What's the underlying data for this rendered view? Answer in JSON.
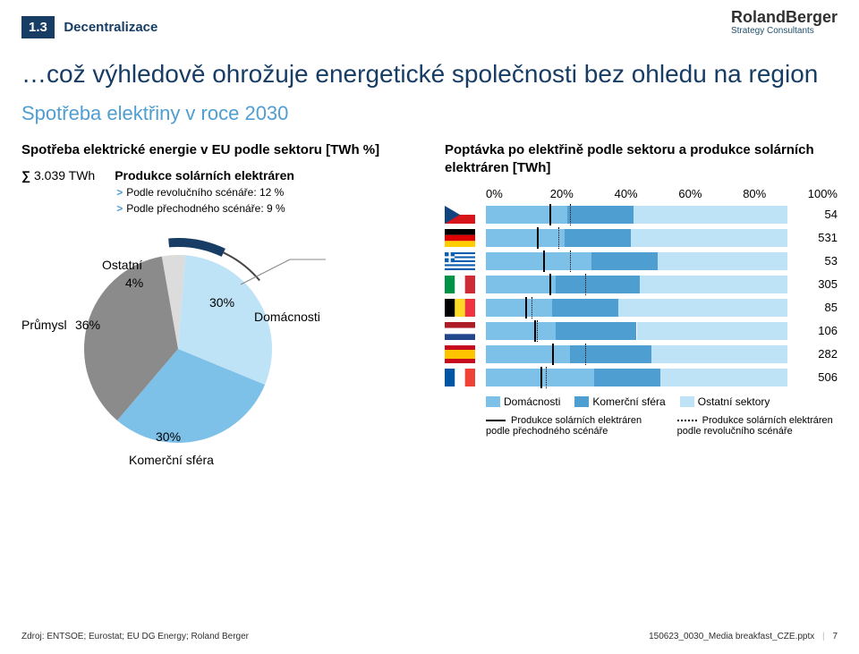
{
  "badge_num": "1.3",
  "badge_text": "Decentralizace",
  "logo_main": "RolandBerger",
  "logo_sub": "Strategy Consultants",
  "title": "…což výhledově ohrožuje energetické společnosti bez ohledu na region",
  "subtitle": "Spotřeba elektřiny v roce 2030",
  "left": {
    "heading": "Spotřeba elektrické energie v EU podle sektoru [TWh %]",
    "sum": "3.039 TWh",
    "solar_h": "Produkce solárních elektráren",
    "b1": "Podle revolučního scénáře: 12 %",
    "b2": "Podle přechodného scénáře:  9 %",
    "lbl_ost": "Ostatní",
    "lbl_ost_pct": "4%",
    "lbl_pru": "Průmysl",
    "lbl_pru_pct": "36%",
    "lbl_dom": "Domácnosti",
    "lbl_dom_pct": "30%",
    "lbl_kom": "Komerční sféra",
    "lbl_kom_pct": "30%",
    "pie": {
      "industry_pct": 36,
      "other_pct": 4,
      "house_pct": 30,
      "comm_pct": 30,
      "col_industry": "#8b8b8b",
      "col_other": "#dcdcdc",
      "col_house": "#bfe3f6",
      "col_comm": "#7ec1e8",
      "gauge_from_deg": -95,
      "gauge_to_deg": -40
    }
  },
  "right": {
    "heading": "Poptávka po elektřině podle sektoru a produkce solárních elektráren [TWh]",
    "axis": [
      "0%",
      "20%",
      "40%",
      "60%",
      "80%",
      "100%"
    ],
    "rows": [
      {
        "flag": "cz",
        "dom": 27,
        "kom": 22,
        "ost": 51,
        "total": 54,
        "solid": 21,
        "dot": 28
      },
      {
        "flag": "de",
        "dom": 26,
        "kom": 22,
        "ost": 52,
        "total": 531,
        "solid": 17,
        "dot": 24
      },
      {
        "flag": "gr",
        "dom": 35,
        "kom": 22,
        "ost": 43,
        "total": 53,
        "solid": 19,
        "dot": 28
      },
      {
        "flag": "it",
        "dom": 23,
        "kom": 28,
        "ost": 49,
        "total": 305,
        "solid": 21,
        "dot": 33
      },
      {
        "flag": "be",
        "dom": 22,
        "kom": 22,
        "ost": 56,
        "total": 85,
        "solid": 13,
        "dot": 15
      },
      {
        "flag": "nl",
        "dom": 23,
        "kom": 27,
        "ost": 50,
        "total": 106,
        "solid": 16,
        "dot": 17
      },
      {
        "flag": "es",
        "dom": 28,
        "kom": 27,
        "ost": 45,
        "total": 282,
        "solid": 22,
        "dot": 33
      },
      {
        "flag": "fr",
        "dom": 36,
        "kom": 22,
        "ost": 42,
        "total": 506,
        "solid": 18,
        "dot": 20
      }
    ],
    "leg_dom": "Domácnosti",
    "leg_kom": "Komerční sféra",
    "leg_ost": "Ostatní sektory",
    "leg_solid": "Produkce solárních elektráren podle přechodného scénáře",
    "leg_dot": "Produkce solárních elektráren podle revolučního scénáře",
    "col_dom": "#7ec1e8",
    "col_kom": "#4f9ed1",
    "col_ost": "#bfe3f6"
  },
  "source": "Zdroj: ENTSOE; Eurostat; EU DG Energy; Roland Berger",
  "footer_right": "150623_0030_Media breakfast_CZE.pptx",
  "footer_page": "7"
}
